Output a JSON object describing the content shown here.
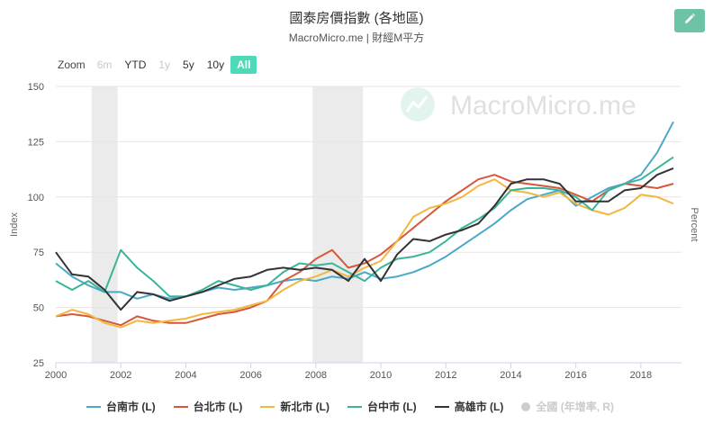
{
  "header": {
    "title": "國泰房價指數 (各地區)",
    "subtitle": "MacroMicro.me | 財經M平方"
  },
  "watermark": "MacroMicro.me",
  "toolbar": {
    "zoom_label": "Zoom",
    "buttons": [
      {
        "label": "6m",
        "state": "disabled"
      },
      {
        "label": "YTD",
        "state": "normal"
      },
      {
        "label": "1y",
        "state": "disabled"
      },
      {
        "label": "5y",
        "state": "normal"
      },
      {
        "label": "10y",
        "state": "normal"
      },
      {
        "label": "All",
        "state": "active"
      }
    ]
  },
  "colors": {
    "accent": "#4ed9b8",
    "edit_button": "#6cc3a6",
    "recession": "#ebebeb"
  },
  "chart_data": {
    "type": "line",
    "ylabel": "Index",
    "y2label": "Percent",
    "ylim": [
      25,
      150
    ],
    "yticks": [
      25,
      50,
      75,
      100,
      125,
      150
    ],
    "xlim": [
      2000,
      2019.25
    ],
    "xticks": [
      2000,
      2002,
      2004,
      2006,
      2008,
      2010,
      2012,
      2014,
      2016,
      2018
    ],
    "recessions": [
      [
        2001.1,
        2001.9
      ],
      [
        2007.9,
        2009.45
      ]
    ],
    "legend_position": "bottom",
    "series": [
      {
        "name": "台南市 (L)",
        "color": "#4aa8c8",
        "visible": true,
        "x": [
          2000,
          2000.5,
          2001,
          2001.5,
          2002,
          2002.5,
          2003,
          2003.5,
          2004,
          2004.5,
          2005,
          2005.5,
          2006,
          2006.5,
          2007,
          2007.5,
          2008,
          2008.5,
          2009,
          2009.5,
          2010,
          2010.5,
          2011,
          2011.5,
          2012,
          2012.5,
          2013,
          2013.5,
          2014,
          2014.5,
          2015,
          2015.5,
          2016,
          2016.5,
          2017,
          2017.5,
          2018,
          2018.5,
          2019
        ],
        "values": [
          70,
          64,
          60,
          57,
          57,
          54,
          56,
          54,
          55,
          57,
          59,
          58,
          59,
          60,
          62,
          63,
          62,
          64,
          63,
          66,
          63,
          64,
          66,
          69,
          73,
          78,
          83,
          88,
          94,
          99,
          101,
          103,
          96,
          100,
          104,
          106,
          110,
          120,
          134
        ]
      },
      {
        "name": "台北市 (L)",
        "color": "#d6573a",
        "visible": true,
        "x": [
          2000,
          2000.5,
          2001,
          2001.5,
          2002,
          2002.5,
          2003,
          2003.5,
          2004,
          2004.5,
          2005,
          2005.5,
          2006,
          2006.5,
          2007,
          2007.5,
          2008,
          2008.5,
          2009,
          2009.5,
          2010,
          2010.5,
          2011,
          2011.5,
          2012,
          2012.5,
          2013,
          2013.5,
          2014,
          2014.5,
          2015,
          2015.5,
          2016,
          2016.5,
          2017,
          2017.5,
          2018,
          2018.5,
          2019
        ],
        "values": [
          46,
          47,
          46,
          44,
          42,
          46,
          44,
          43,
          43,
          45,
          47,
          48,
          50,
          53,
          62,
          66,
          72,
          76,
          68,
          70,
          74,
          80,
          86,
          92,
          98,
          103,
          108,
          110,
          107,
          106,
          105,
          104,
          101,
          98,
          103,
          106,
          105,
          104,
          106
        ]
      },
      {
        "name": "新北市 (L)",
        "color": "#f2b73f",
        "visible": true,
        "x": [
          2000,
          2000.5,
          2001,
          2001.5,
          2002,
          2002.5,
          2003,
          2003.5,
          2004,
          2004.5,
          2005,
          2005.5,
          2006,
          2006.5,
          2007,
          2007.5,
          2008,
          2008.5,
          2009,
          2009.5,
          2010,
          2010.5,
          2011,
          2011.5,
          2012,
          2012.5,
          2013,
          2013.5,
          2014,
          2014.5,
          2015,
          2015.5,
          2016,
          2016.5,
          2017,
          2017.5,
          2018,
          2018.5,
          2019
        ],
        "values": [
          46,
          49,
          47,
          43,
          41,
          44,
          43,
          44,
          45,
          47,
          48,
          49,
          51,
          53,
          58,
          62,
          64,
          67,
          64,
          68,
          71,
          80,
          91,
          95,
          97,
          100,
          105,
          108,
          103,
          102,
          100,
          102,
          97,
          94,
          92,
          95,
          101,
          100,
          97
        ]
      },
      {
        "name": "台中市 (L)",
        "color": "#3ab59a",
        "visible": true,
        "x": [
          2000,
          2000.5,
          2001,
          2001.5,
          2002,
          2002.5,
          2003,
          2003.5,
          2004,
          2004.5,
          2005,
          2005.5,
          2006,
          2006.5,
          2007,
          2007.5,
          2008,
          2008.5,
          2009,
          2009.5,
          2010,
          2010.5,
          2011,
          2011.5,
          2012,
          2012.5,
          2013,
          2013.5,
          2014,
          2014.5,
          2015,
          2015.5,
          2016,
          2016.5,
          2017,
          2017.5,
          2018,
          2018.5,
          2019
        ],
        "values": [
          62,
          58,
          62,
          57,
          76,
          68,
          62,
          55,
          55,
          58,
          62,
          60,
          58,
          60,
          66,
          70,
          69,
          70,
          66,
          62,
          68,
          72,
          73,
          75,
          80,
          86,
          90,
          95,
          103,
          104,
          104,
          103,
          100,
          94,
          103,
          106,
          108,
          113,
          118
        ]
      },
      {
        "name": "高雄市 (L)",
        "color": "#333333",
        "visible": true,
        "x": [
          2000,
          2000.5,
          2001,
          2001.5,
          2002,
          2002.5,
          2003,
          2003.5,
          2004,
          2004.5,
          2005,
          2005.5,
          2006,
          2006.5,
          2007,
          2007.5,
          2008,
          2008.5,
          2009,
          2009.5,
          2010,
          2010.5,
          2011,
          2011.5,
          2012,
          2012.5,
          2013,
          2013.5,
          2014,
          2014.5,
          2015,
          2015.5,
          2016,
          2016.5,
          2017,
          2017.5,
          2018,
          2018.5,
          2019
        ],
        "values": [
          75,
          65,
          64,
          58,
          49,
          57,
          56,
          53,
          55,
          57,
          60,
          63,
          64,
          67,
          68,
          67,
          68,
          67,
          62,
          72,
          62,
          74,
          81,
          80,
          83,
          85,
          88,
          96,
          106,
          108,
          108,
          106,
          98,
          98,
          98,
          103,
          104,
          110,
          113
        ]
      },
      {
        "name": "全國 (年增率, R)",
        "color": "#cccccc",
        "visible": false,
        "x": [],
        "values": []
      }
    ]
  }
}
